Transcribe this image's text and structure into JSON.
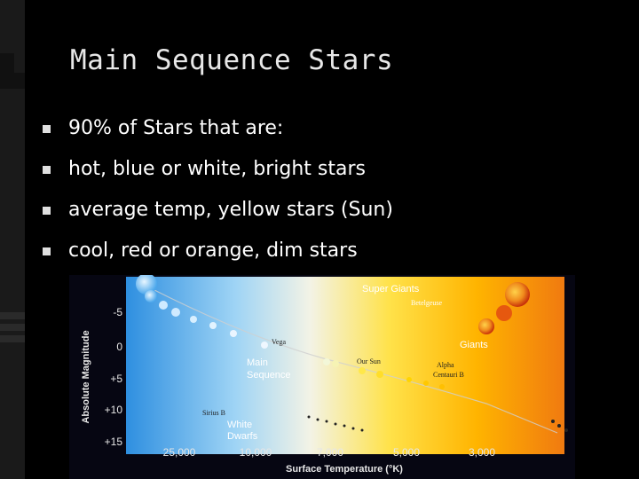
{
  "slide": {
    "title": "Main Sequence Stars",
    "bullets": [
      "90% of Stars that are:",
      " hot, blue or white, bright stars",
      "average temp, yellow stars  (Sun)",
      " cool, red or orange, dim stars"
    ]
  },
  "hr_diagram": {
    "y_axis_title": "Absolute Magnitude",
    "y_ticks": [
      "-5",
      "0",
      "+5",
      "+10",
      "+15"
    ],
    "x_axis_title": "Surface Temperature (°K)",
    "x_ticks": [
      "25,000",
      "10,000",
      "7,000",
      "5,000",
      "3,000"
    ],
    "labels": {
      "super_giants": "Super Giants",
      "betelgeuse": "Betelgeuse",
      "giants": "Giants",
      "vega": "Vega",
      "main_sequence_1": "Main",
      "main_sequence_2": "Sequence",
      "our_sun": "Our Sun",
      "alpha_centauri_1": "Alpha",
      "alpha_centauri_2": "Centauri B",
      "sirius_b": "Sirius B",
      "white_dwarfs_1": "White",
      "white_dwarfs_2": "Dwarfs"
    },
    "colors": {
      "hot": "#5ab4f0",
      "mid": "#f5f5c8",
      "warm": "#ffd200",
      "cool": "#f08c1e"
    }
  }
}
